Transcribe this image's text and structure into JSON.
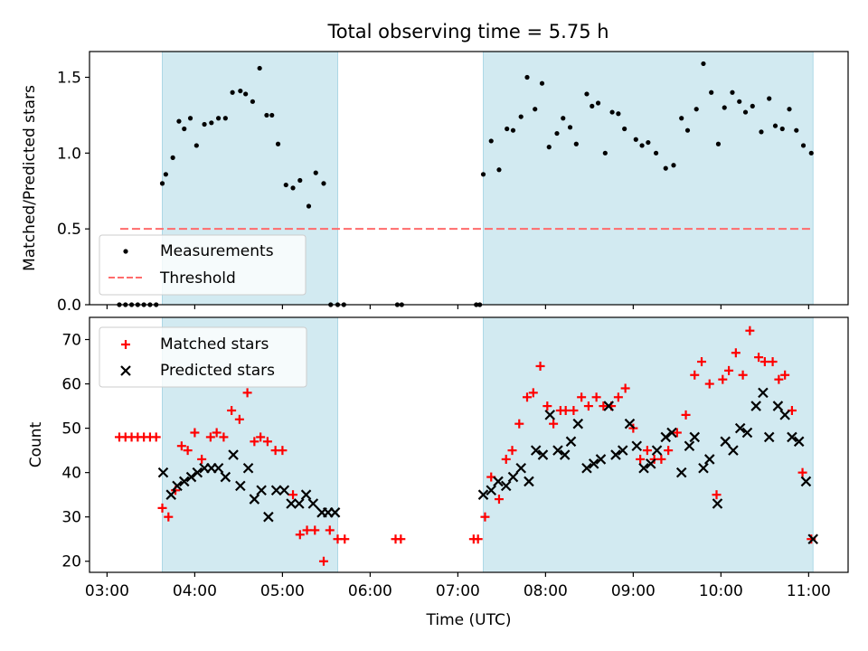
{
  "title": "Total observing time = 5.75 h",
  "colors": {
    "shade": "#add8e6",
    "measurement": "#000000",
    "threshold": "#ff6b6b",
    "matched": "#ff0000",
    "predicted": "#000000"
  },
  "chart_data": [
    {
      "type": "scatter",
      "ylabel": "Matched/Predicted stars",
      "xlim": [
        2.8,
        11.45
      ],
      "ylim": [
        0,
        1.67
      ],
      "yticks": [
        0.0,
        0.5,
        1.0,
        1.5
      ],
      "ytick_labels": [
        "0.0",
        "0.5",
        "1.0",
        "1.5"
      ],
      "shaded_intervals": [
        [
          3.63,
          5.63
        ],
        [
          7.29,
          11.05
        ]
      ],
      "legend": {
        "position": "lower-left",
        "entries": [
          {
            "label": "Measurements",
            "marker": "dot"
          },
          {
            "label": "Threshold",
            "marker": "dashed-line"
          }
        ]
      },
      "threshold": {
        "y": 0.5,
        "x": [
          3.15,
          11.05
        ]
      },
      "series": [
        {
          "name": "Measurements",
          "x": [
            3.14,
            3.21,
            3.28,
            3.35,
            3.42,
            3.49,
            3.56,
            3.63,
            3.67,
            3.75,
            3.82,
            3.88,
            3.95,
            4.02,
            4.11,
            4.19,
            4.27,
            4.35,
            4.43,
            4.52,
            4.58,
            4.66,
            4.74,
            4.82,
            4.88,
            4.95,
            5.04,
            5.12,
            5.2,
            5.3,
            5.38,
            5.47,
            5.55,
            5.63,
            5.7,
            6.31,
            6.36,
            7.21,
            7.25,
            7.29,
            7.38,
            7.47,
            7.56,
            7.63,
            7.72,
            7.79,
            7.88,
            7.96,
            8.04,
            8.13,
            8.2,
            8.28,
            8.35,
            8.47,
            8.53,
            8.6,
            8.68,
            8.76,
            8.83,
            8.9,
            9.03,
            9.1,
            9.17,
            9.26,
            9.37,
            9.46,
            9.55,
            9.62,
            9.72,
            9.8,
            9.89,
            9.97,
            10.04,
            10.13,
            10.21,
            10.28,
            10.36,
            10.46,
            10.55,
            10.62,
            10.7,
            10.78,
            10.86,
            10.94,
            11.03
          ],
          "y": [
            0,
            0,
            0,
            0,
            0,
            0,
            0,
            0.8,
            0.86,
            0.97,
            1.21,
            1.16,
            1.23,
            1.05,
            1.19,
            1.2,
            1.23,
            1.23,
            1.4,
            1.41,
            1.39,
            1.34,
            1.56,
            1.25,
            1.25,
            1.06,
            0.79,
            0.77,
            0.82,
            0.65,
            0.87,
            0.8,
            0,
            0,
            0,
            0,
            0,
            0,
            0,
            0.86,
            1.08,
            0.89,
            1.16,
            1.15,
            1.24,
            1.5,
            1.29,
            1.46,
            1.04,
            1.13,
            1.23,
            1.17,
            1.06,
            1.39,
            1.31,
            1.33,
            1.0,
            1.27,
            1.26,
            1.16,
            1.09,
            1.05,
            1.07,
            1.0,
            0.9,
            0.92,
            1.23,
            1.15,
            1.29,
            1.59,
            1.4,
            1.06,
            1.3,
            1.4,
            1.34,
            1.27,
            1.31,
            1.14,
            1.36,
            1.18,
            1.16,
            1.29,
            1.15,
            1.05,
            1.0
          ]
        }
      ]
    },
    {
      "type": "scatter",
      "ylabel": "Count",
      "xlabel": "Time (UTC)",
      "xlim": [
        2.8,
        11.45
      ],
      "ylim": [
        17.5,
        75
      ],
      "yticks": [
        20,
        30,
        40,
        50,
        60,
        70
      ],
      "ytick_labels": [
        "20",
        "30",
        "40",
        "50",
        "60",
        "70"
      ],
      "xticks": [
        3,
        4,
        5,
        6,
        7,
        8,
        9,
        10,
        11
      ],
      "xtick_labels": [
        "03:00",
        "04:00",
        "05:00",
        "06:00",
        "07:00",
        "08:00",
        "09:00",
        "10:00",
        "11:00"
      ],
      "shaded_intervals": [
        [
          3.63,
          5.63
        ],
        [
          7.29,
          11.05
        ]
      ],
      "legend": {
        "position": "top-left",
        "entries": [
          {
            "label": "Matched stars",
            "marker": "plus"
          },
          {
            "label": "Predicted stars",
            "marker": "x"
          }
        ]
      },
      "series": [
        {
          "name": "Matched stars",
          "marker": "plus",
          "points": [
            [
              3.14,
              48
            ],
            [
              3.21,
              48
            ],
            [
              3.28,
              48
            ],
            [
              3.35,
              48
            ],
            [
              3.42,
              48
            ],
            [
              3.49,
              48
            ],
            [
              3.56,
              48
            ],
            [
              3.63,
              32
            ],
            [
              3.7,
              30
            ],
            [
              3.78,
              36
            ],
            [
              3.85,
              46
            ],
            [
              3.92,
              45
            ],
            [
              4.0,
              49
            ],
            [
              4.08,
              43
            ],
            [
              4.18,
              48
            ],
            [
              4.25,
              49
            ],
            [
              4.33,
              48
            ],
            [
              4.42,
              54
            ],
            [
              4.51,
              52
            ],
            [
              4.6,
              58
            ],
            [
              4.68,
              47
            ],
            [
              4.75,
              48
            ],
            [
              4.83,
              47
            ],
            [
              4.92,
              45
            ],
            [
              5.0,
              45
            ],
            [
              5.12,
              35
            ],
            [
              5.2,
              26
            ],
            [
              5.28,
              27
            ],
            [
              5.37,
              27
            ],
            [
              5.47,
              20
            ],
            [
              5.54,
              27
            ],
            [
              5.63,
              25
            ],
            [
              5.71,
              25
            ],
            [
              6.29,
              25
            ],
            [
              6.35,
              25
            ],
            [
              7.18,
              25
            ],
            [
              7.23,
              25
            ],
            [
              7.31,
              30
            ],
            [
              7.38,
              39
            ],
            [
              7.47,
              34
            ],
            [
              7.55,
              43
            ],
            [
              7.62,
              45
            ],
            [
              7.7,
              51
            ],
            [
              7.79,
              57
            ],
            [
              7.86,
              58
            ],
            [
              7.94,
              64
            ],
            [
              8.02,
              55
            ],
            [
              8.09,
              51
            ],
            [
              8.17,
              54
            ],
            [
              8.23,
              54
            ],
            [
              8.32,
              54
            ],
            [
              8.41,
              57
            ],
            [
              8.49,
              55
            ],
            [
              8.58,
              57
            ],
            [
              8.66,
              55
            ],
            [
              8.75,
              55
            ],
            [
              8.83,
              57
            ],
            [
              8.91,
              59
            ],
            [
              9.0,
              50
            ],
            [
              9.08,
              43
            ],
            [
              9.16,
              45
            ],
            [
              9.24,
              43
            ],
            [
              9.32,
              43
            ],
            [
              9.4,
              45
            ],
            [
              9.5,
              49
            ],
            [
              9.6,
              53
            ],
            [
              9.7,
              62
            ],
            [
              9.78,
              65
            ],
            [
              9.87,
              60
            ],
            [
              9.95,
              35
            ],
            [
              10.02,
              61
            ],
            [
              10.09,
              63
            ],
            [
              10.17,
              67
            ],
            [
              10.25,
              62
            ],
            [
              10.33,
              72
            ],
            [
              10.43,
              66
            ],
            [
              10.5,
              65
            ],
            [
              10.59,
              65
            ],
            [
              10.66,
              61
            ],
            [
              10.73,
              62
            ],
            [
              10.81,
              54
            ],
            [
              10.93,
              40
            ],
            [
              11.03,
              25
            ]
          ]
        },
        {
          "name": "Predicted stars",
          "marker": "x",
          "points": [
            [
              3.64,
              40
            ],
            [
              3.73,
              35
            ],
            [
              3.8,
              37
            ],
            [
              3.88,
              38
            ],
            [
              3.96,
              39
            ],
            [
              4.03,
              40
            ],
            [
              4.11,
              41
            ],
            [
              4.19,
              41
            ],
            [
              4.27,
              41
            ],
            [
              4.35,
              39
            ],
            [
              4.44,
              44
            ],
            [
              4.52,
              37
            ],
            [
              4.61,
              41
            ],
            [
              4.68,
              34
            ],
            [
              4.76,
              36
            ],
            [
              4.84,
              30
            ],
            [
              4.93,
              36
            ],
            [
              5.02,
              36
            ],
            [
              5.1,
              33
            ],
            [
              5.19,
              33
            ],
            [
              5.27,
              35
            ],
            [
              5.35,
              33
            ],
            [
              5.45,
              31
            ],
            [
              5.52,
              31
            ],
            [
              5.6,
              31
            ],
            [
              7.29,
              35
            ],
            [
              7.38,
              36
            ],
            [
              7.46,
              38
            ],
            [
              7.55,
              37
            ],
            [
              7.63,
              39
            ],
            [
              7.72,
              41
            ],
            [
              7.81,
              38
            ],
            [
              7.89,
              45
            ],
            [
              7.97,
              44
            ],
            [
              8.05,
              53
            ],
            [
              8.14,
              45
            ],
            [
              8.22,
              44
            ],
            [
              8.29,
              47
            ],
            [
              8.37,
              51
            ],
            [
              8.47,
              41
            ],
            [
              8.55,
              42
            ],
            [
              8.63,
              43
            ],
            [
              8.72,
              55
            ],
            [
              8.8,
              44
            ],
            [
              8.88,
              45
            ],
            [
              8.96,
              51
            ],
            [
              9.04,
              46
            ],
            [
              9.12,
              41
            ],
            [
              9.2,
              42
            ],
            [
              9.27,
              45
            ],
            [
              9.37,
              48
            ],
            [
              9.44,
              49
            ],
            [
              9.55,
              40
            ],
            [
              9.64,
              46
            ],
            [
              9.7,
              48
            ],
            [
              9.8,
              41
            ],
            [
              9.87,
              43
            ],
            [
              9.96,
              33
            ],
            [
              10.05,
              47
            ],
            [
              10.14,
              45
            ],
            [
              10.22,
              50
            ],
            [
              10.3,
              49
            ],
            [
              10.4,
              55
            ],
            [
              10.48,
              58
            ],
            [
              10.55,
              48
            ],
            [
              10.65,
              55
            ],
            [
              10.73,
              53
            ],
            [
              10.81,
              48
            ],
            [
              10.89,
              47
            ],
            [
              10.97,
              38
            ],
            [
              11.05,
              25
            ]
          ]
        }
      ]
    }
  ]
}
